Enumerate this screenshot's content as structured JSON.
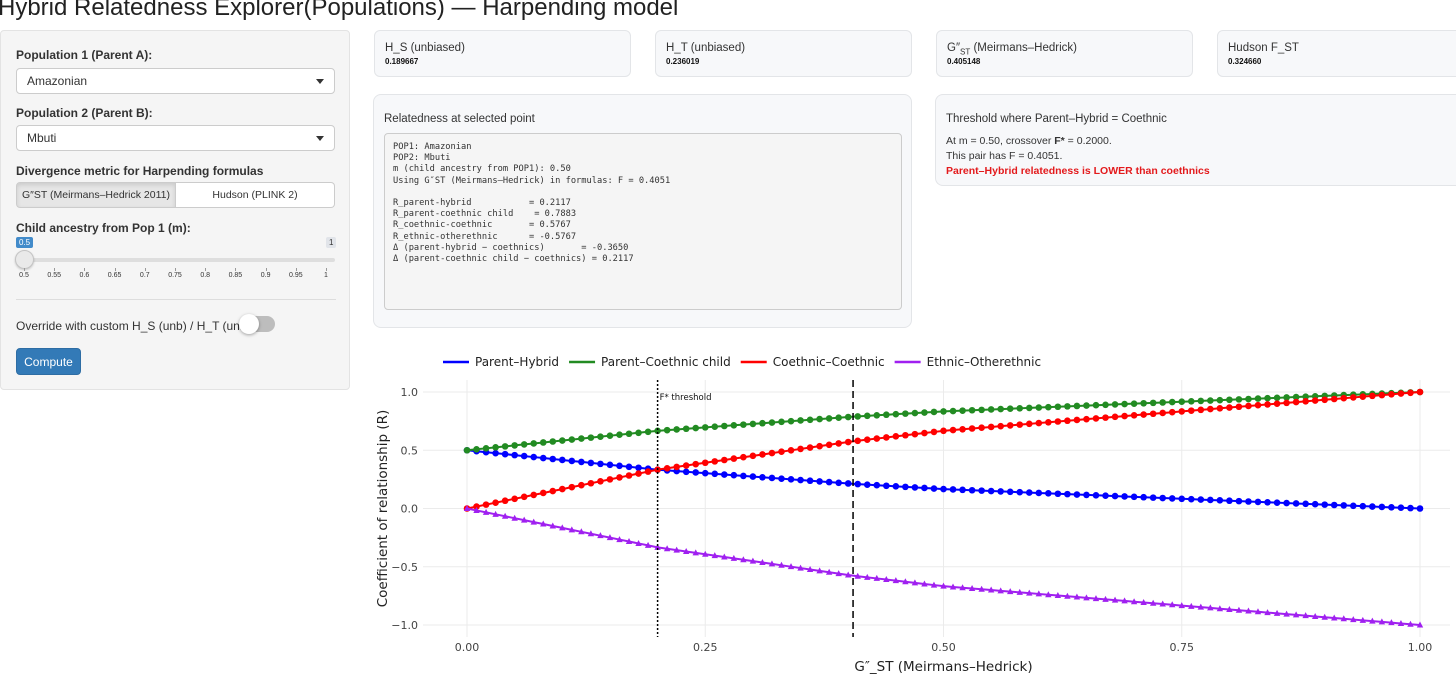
{
  "app": {
    "title": "Hybrid Relatedness Explorer(Populations) — Harpending model"
  },
  "sidebar": {
    "pop1_label": "Population 1 (Parent A):",
    "pop1_value": "Amazonian",
    "pop2_label": "Population 2 (Parent B):",
    "pop2_value": "Mbuti",
    "metric_label": "Divergence metric for Harpending formulas",
    "metric_options": [
      "G″ST (Meirmans–Hedrick 2011)",
      "Hudson (PLINK 2)"
    ],
    "metric_selected": "G″ST (Meirmans–Hedrick 2011)",
    "slider": {
      "label": "Child ancestry from Pop 1 (m):",
      "min": 0.5,
      "max": 1,
      "value": 0.5,
      "min_badge": "0.5",
      "max_badge": "1",
      "ticks": [
        "0.5",
        "0.55",
        "0.6",
        "0.65",
        "0.7",
        "0.75",
        "0.8",
        "0.85",
        "0.9",
        "0.95",
        "1"
      ]
    },
    "override_label": "Override with custom H_S (unb) / H_T (unb)",
    "override_enabled": false,
    "compute_label": "Compute"
  },
  "stats": [
    {
      "title_main": "H_S (unbiased)",
      "title_sub": "",
      "title_tail": "",
      "value": "0.189667"
    },
    {
      "title_main": "H_T (unbiased)",
      "title_sub": "",
      "title_tail": "",
      "value": "0.236019"
    },
    {
      "title_main": "G″",
      "title_sub": "ST",
      "title_tail": " (Meirmans–Hedrick)",
      "value": "0.405148"
    },
    {
      "title_main": "Hudson F_ST",
      "title_sub": "",
      "title_tail": "",
      "value": "0.324660"
    }
  ],
  "relatedness": {
    "title": "Relatedness at selected point",
    "text": "POP1: Amazonian\nPOP2: Mbuti\nm (child ancestry from POP1): 0.50\nUsing G″ST (Meirmans–Hedrick) in formulas: F = 0.4051\n\nR_parent-hybrid           = 0.2117\nR_parent-coethnic child    = 0.7883\nR_coethnic-coethnic       = 0.5767\nR_ethnic-otherethnic      = -0.5767\nΔ (parent-hybrid − coethnics)       = -0.3650\nΔ (parent-coethnic child − coethnics) = 0.2117"
  },
  "threshold": {
    "title": "Threshold where Parent–Hybrid = Coethnic",
    "line1_prefix": "At m = 0.50, crossover ",
    "line1_bold": "F*",
    "line1_suffix": " = 0.2000.",
    "line2": "This pair has F = 0.4051.",
    "result": "Parent–Hybrid relatedness is LOWER than coethnics",
    "result_color": "#e31a1c"
  },
  "chart_data": {
    "type": "line",
    "xlabel": "G″_ST (Meirmans–Hedrick)",
    "ylabel": "Coefficient of relationship (R)",
    "xlim": [
      0,
      1
    ],
    "ylim": [
      -1,
      1
    ],
    "x_ticks": [
      "0.00",
      "0.25",
      "0.50",
      "0.75",
      "1.00"
    ],
    "y_ticks": [
      "1.0",
      "0.5",
      "0.0",
      "−0.5",
      "−1.0"
    ],
    "grid": true,
    "legend_position": "top",
    "m": 0.5,
    "x_step": 0.01,
    "series": [
      {
        "name": "Parent–Hybrid",
        "color": "#0000ff",
        "marker": "circle",
        "samples": [
          [
            0,
            0.5
          ],
          [
            0.2,
            0.333
          ],
          [
            0.4051,
            0.2117
          ],
          [
            0.5,
            0.1667
          ],
          [
            1,
            0
          ]
        ]
      },
      {
        "name": "Parent–Coethnic child",
        "color": "#228b22",
        "marker": "circle",
        "samples": [
          [
            0,
            0.5
          ],
          [
            0.2,
            0.6667
          ],
          [
            0.4051,
            0.7883
          ],
          [
            0.5,
            0.8333
          ],
          [
            1,
            1
          ]
        ]
      },
      {
        "name": "Coethnic–Coethnic",
        "color": "#ff0000",
        "marker": "circle",
        "samples": [
          [
            0,
            0
          ],
          [
            0.2,
            0.3333
          ],
          [
            0.4051,
            0.5767
          ],
          [
            0.5,
            0.6667
          ],
          [
            1,
            1
          ]
        ]
      },
      {
        "name": "Ethnic–Otherethnic",
        "color": "#a020f0",
        "marker": "triangle",
        "samples": [
          [
            0,
            0
          ],
          [
            0.2,
            -0.3333
          ],
          [
            0.4051,
            -0.5767
          ],
          [
            0.5,
            -0.6667
          ],
          [
            1,
            -1
          ]
        ]
      }
    ],
    "annotations": [
      {
        "x": 0.2,
        "style": "dotted",
        "label": "F* threshold"
      },
      {
        "x": 0.4051,
        "style": "dashed",
        "label": ""
      }
    ]
  }
}
